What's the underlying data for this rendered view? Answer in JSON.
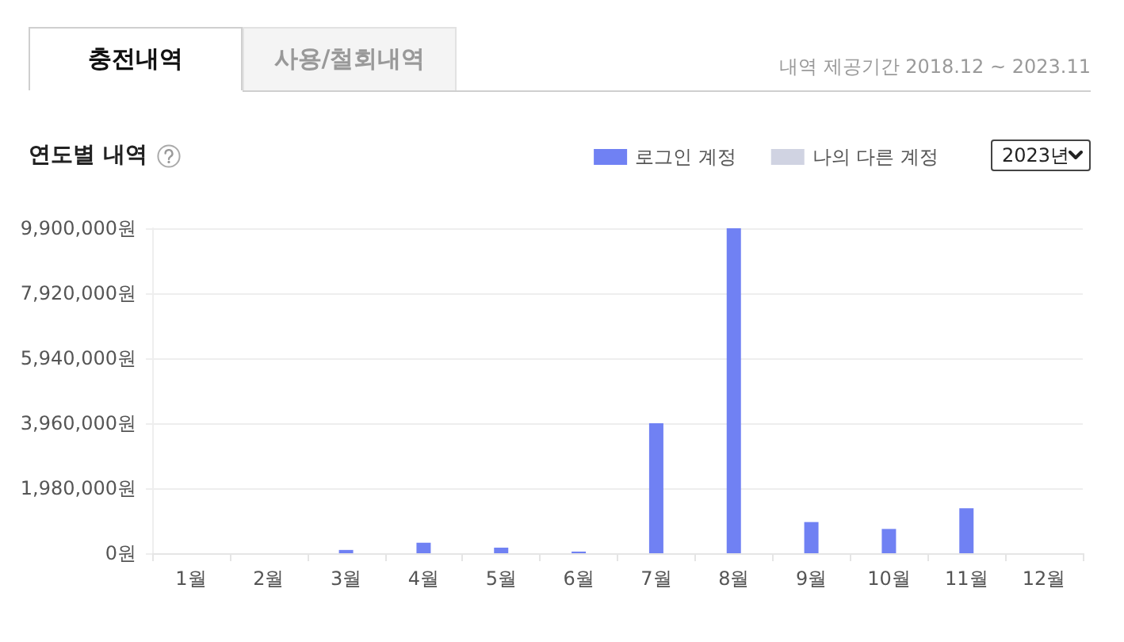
{
  "chart_data": {
    "type": "bar",
    "title": "연도별 내역",
    "subtitle": "내역 제공기간 2018.12 ~ 2023.11",
    "annotations": [
      "충전내역",
      "사용/철회내역",
      "2023년"
    ],
    "categories": [
      "1월",
      "2월",
      "3월",
      "4월",
      "5월",
      "6월",
      "7월",
      "8월",
      "9월",
      "10월",
      "11월",
      "12월"
    ],
    "series": [
      {
        "name": "로그인 계정",
        "color": "#7081f3",
        "values": [
          0,
          0,
          100000,
          320000,
          170000,
          50000,
          3960000,
          9900000,
          950000,
          740000,
          1370000,
          0
        ]
      },
      {
        "name": "나의 다른 계정",
        "color": "#d0d3e2",
        "values": [
          0,
          0,
          0,
          0,
          0,
          0,
          0,
          0,
          0,
          0,
          0,
          0
        ]
      }
    ],
    "stacked": true,
    "ylim": [
      0,
      9900000
    ],
    "yticks": [
      {
        "value": 0,
        "label": "0원"
      },
      {
        "value": 1980000,
        "label": "1,980,000원"
      },
      {
        "value": 3960000,
        "label": "3,960,000원"
      },
      {
        "value": 5940000,
        "label": "5,940,000원"
      },
      {
        "value": 7920000,
        "label": "7,920,000원"
      },
      {
        "value": 9900000,
        "label": "9,900,000원"
      }
    ],
    "grid": "y",
    "legend": "top right"
  }
}
